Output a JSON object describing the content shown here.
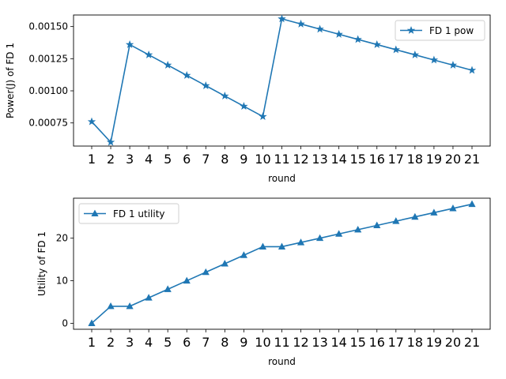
{
  "chart_data": [
    {
      "type": "line",
      "xlabel": "round",
      "ylabel": "Power(J) of FD 1",
      "legend_placement": "upper-right",
      "grid": false,
      "marker": "star",
      "color": "#1f77b4",
      "categories": [
        "1",
        "2",
        "3",
        "4",
        "5",
        "6",
        "7",
        "8",
        "9",
        "10",
        "11",
        "12",
        "13",
        "14",
        "15",
        "16",
        "17",
        "18",
        "19",
        "20",
        "21"
      ],
      "ylim": [
        0.00057,
        0.00159
      ],
      "yticks": [
        0.00075,
        0.001,
        0.00125,
        0.0015
      ],
      "ytick_labels": [
        "0.00075",
        "0.00100",
        "0.00125",
        "0.00150"
      ],
      "series": [
        {
          "name": "FD 1 pow",
          "values": [
            0.00076,
            0.0006,
            0.00136,
            0.00128,
            0.0012,
            0.00112,
            0.00104,
            0.00096,
            0.00088,
            0.0008,
            0.00156,
            0.00152,
            0.00148,
            0.00144,
            0.0014,
            0.00136,
            0.00132,
            0.00128,
            0.00124,
            0.0012,
            0.00116
          ]
        }
      ]
    },
    {
      "type": "line",
      "xlabel": "round",
      "ylabel": "Utility of FD 1",
      "legend_placement": "upper-left",
      "grid": false,
      "marker": "triangle",
      "color": "#1f77b4",
      "categories": [
        "1",
        "2",
        "3",
        "4",
        "5",
        "6",
        "7",
        "8",
        "9",
        "10",
        "11",
        "12",
        "13",
        "14",
        "15",
        "16",
        "17",
        "18",
        "19",
        "20",
        "21"
      ],
      "ylim": [
        -1.4,
        29.4
      ],
      "yticks": [
        0,
        10,
        20
      ],
      "ytick_labels": [
        "0",
        "10",
        "20"
      ],
      "series": [
        {
          "name": "FD 1 utility",
          "values": [
            0,
            4,
            4,
            6,
            8,
            10,
            12,
            14,
            16,
            18,
            18,
            19,
            20,
            21,
            22,
            23,
            24,
            25,
            26,
            27,
            28
          ]
        }
      ]
    }
  ]
}
